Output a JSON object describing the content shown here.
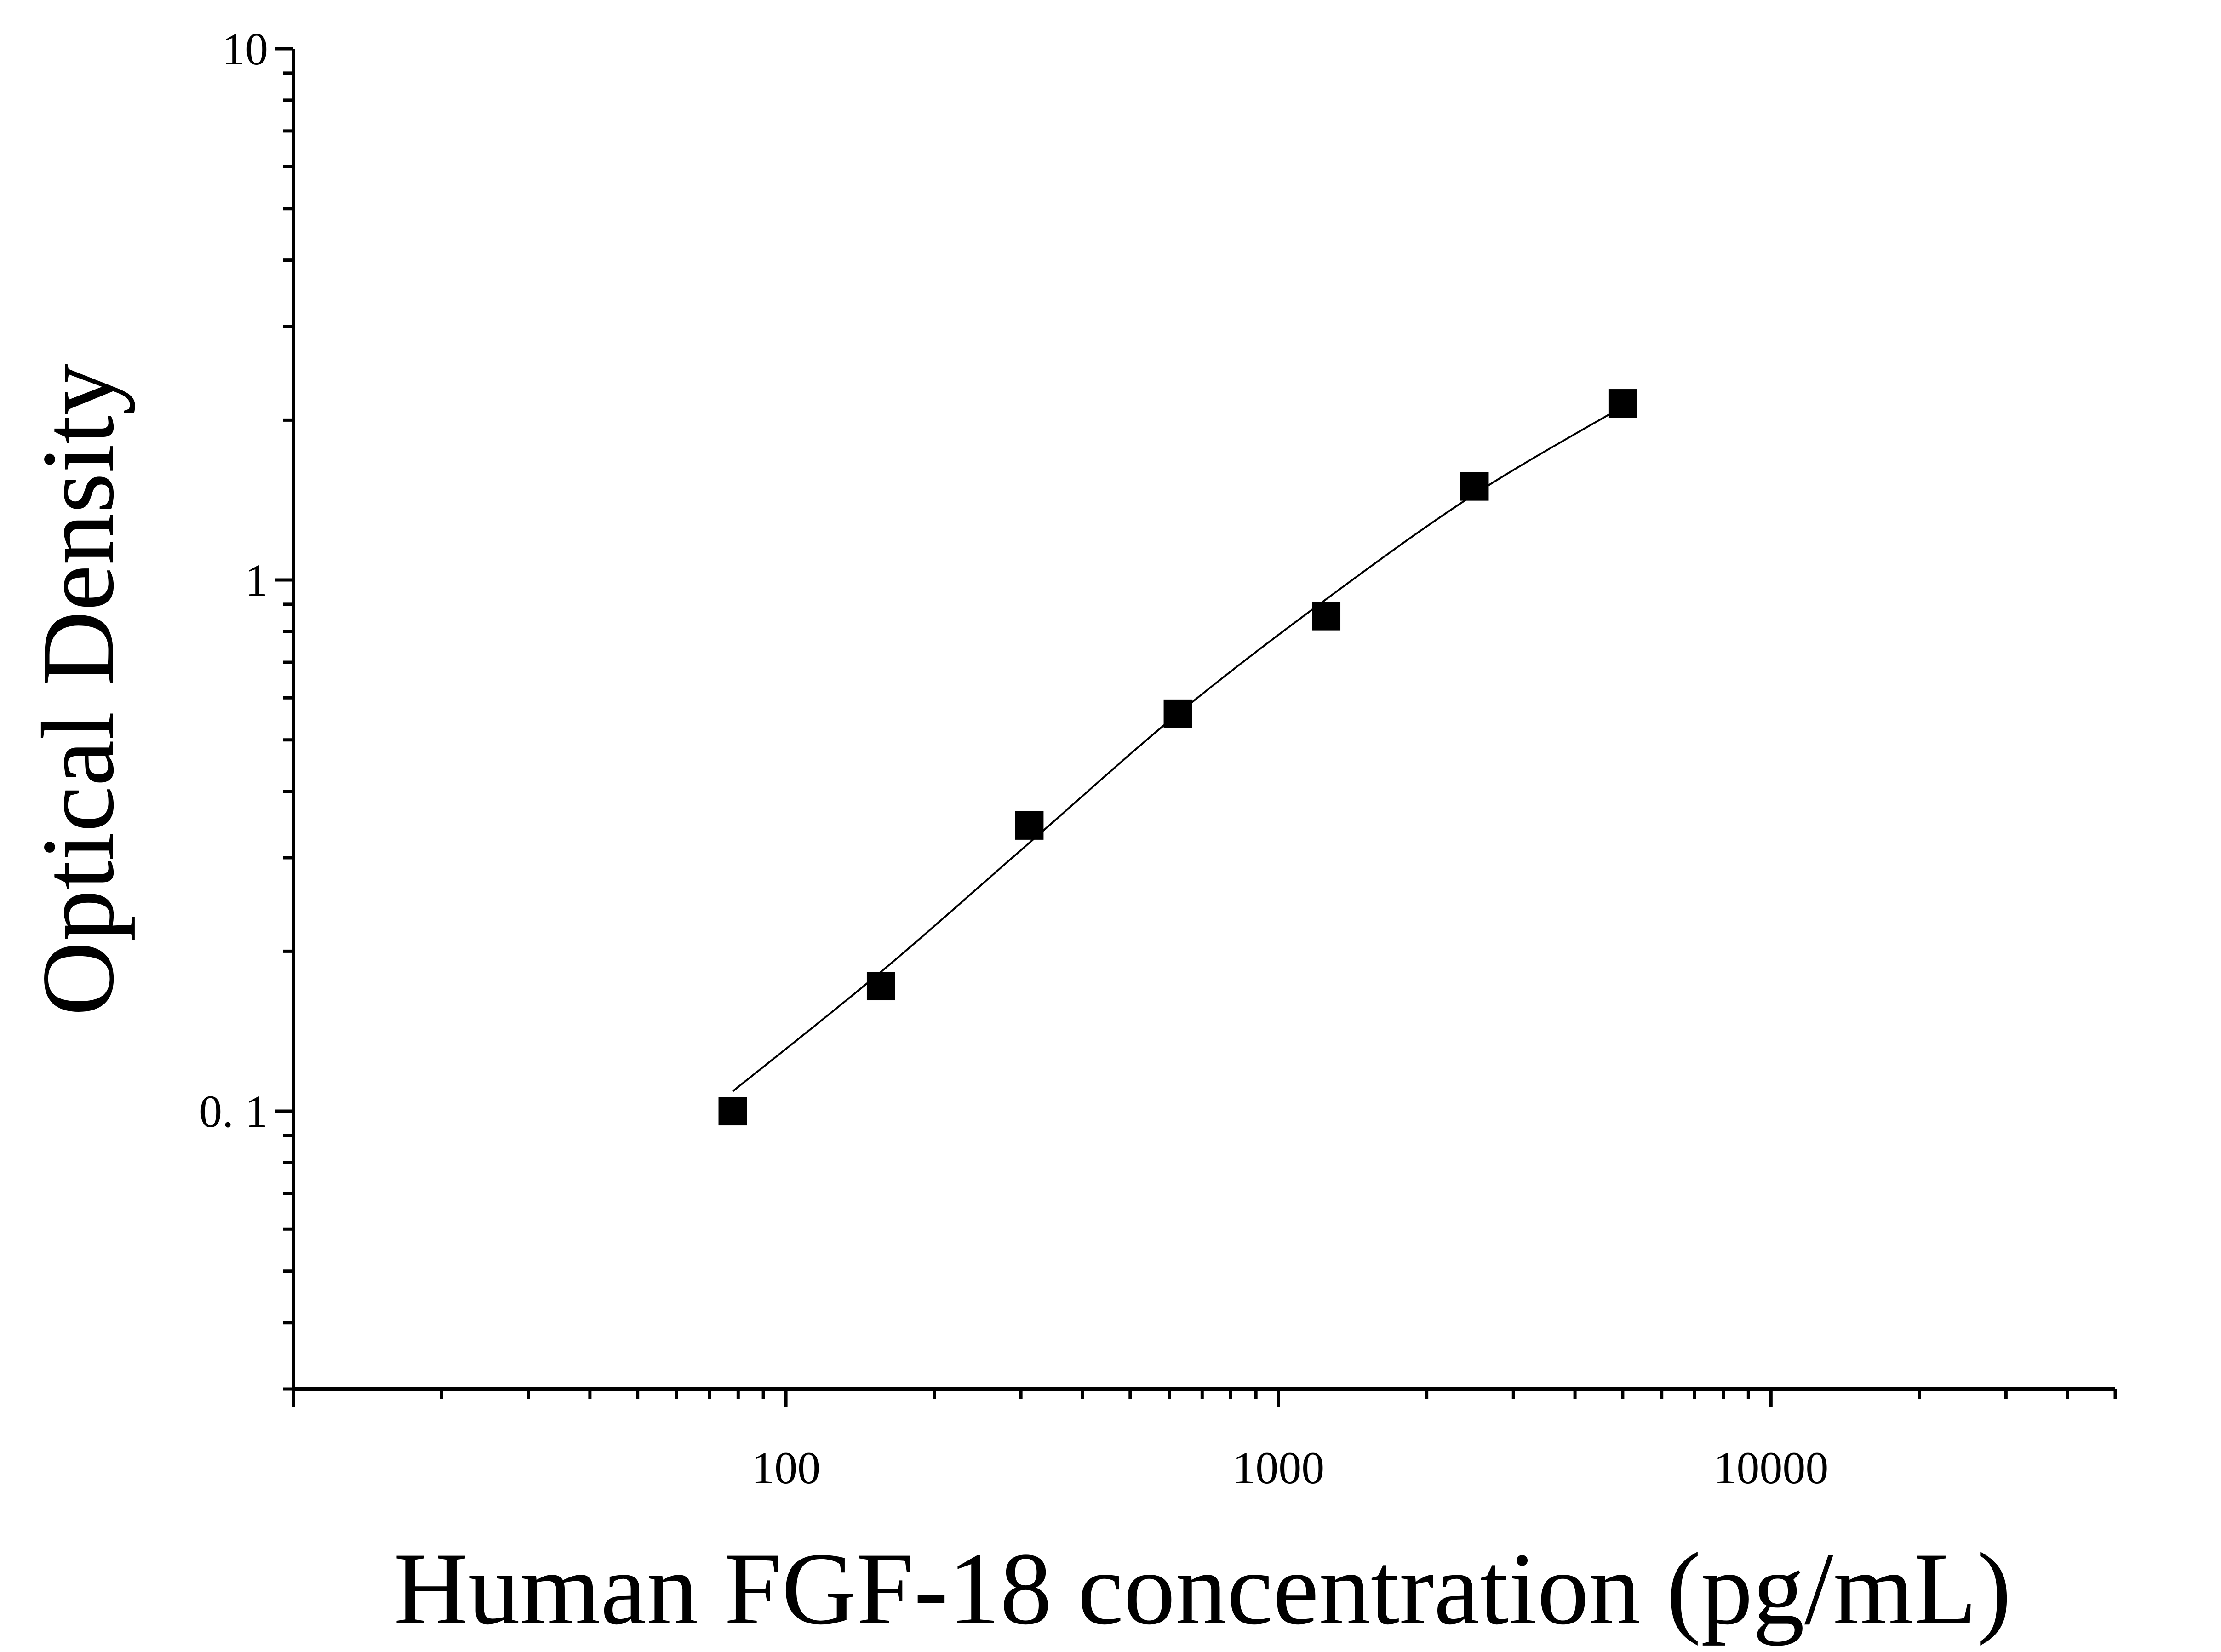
{
  "chart_data": {
    "type": "scatter",
    "title": "",
    "xlabel": "Human FGF-18 concentration (pg/mL)",
    "ylabel": "Optical Density",
    "x_scale": "log",
    "y_scale": "log",
    "xlim": [
      10,
      50000
    ],
    "ylim": [
      0.03,
      10
    ],
    "x_ticks": [
      100,
      1000,
      10000
    ],
    "x_tick_labels": [
      "100",
      "1000",
      "10000"
    ],
    "y_ticks": [
      0.1,
      1,
      10
    ],
    "y_tick_labels": [
      "0. 1",
      "1",
      "10"
    ],
    "grid": false,
    "legend": "none",
    "series": [
      {
        "marker": "square",
        "color": "#000000",
        "x": [
          78,
          156,
          312,
          625,
          1250,
          2500,
          5000
        ],
        "y": [
          0.1,
          0.172,
          0.345,
          0.56,
          0.855,
          1.5,
          2.15
        ]
      }
    ],
    "fit_curve": {
      "color": "#000000",
      "x": [
        78,
        156,
        312,
        625,
        1250,
        2500,
        5000
      ],
      "y": [
        0.109,
        0.183,
        0.32,
        0.56,
        0.92,
        1.45,
        2.12
      ]
    }
  }
}
